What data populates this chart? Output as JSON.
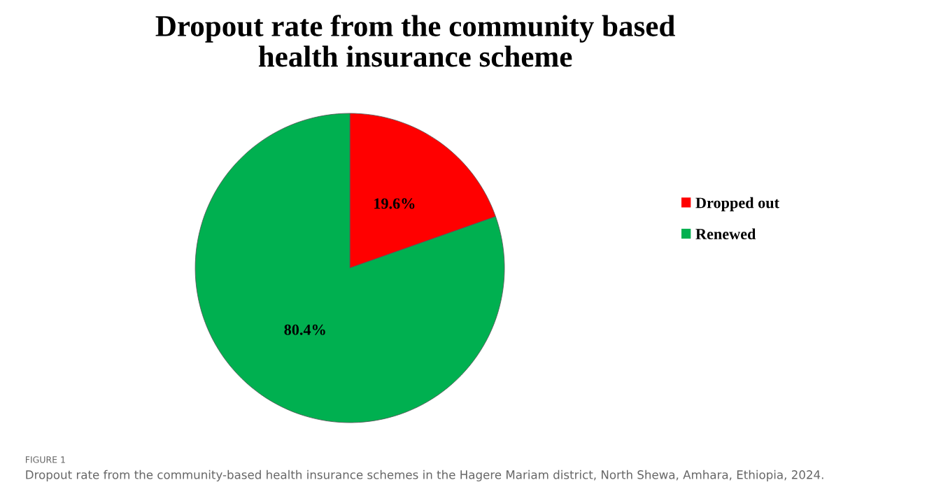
{
  "chart_data": {
    "type": "pie",
    "title": "Dropout rate from the community based\nhealth insurance scheme",
    "categories": [
      "Dropped out",
      "Renewed"
    ],
    "values": [
      19.6,
      80.4
    ],
    "colors": [
      "#ff0000",
      "#00b050"
    ],
    "value_labels": [
      "19.6%",
      "80.4%"
    ],
    "legend": "right",
    "annotations": [
      "FIGURE 1",
      "Dropout rate from the community-based health insurance schemes in the Hagere Mariam district, North Shewa, Amhara, Ethiopia, 2024."
    ]
  }
}
